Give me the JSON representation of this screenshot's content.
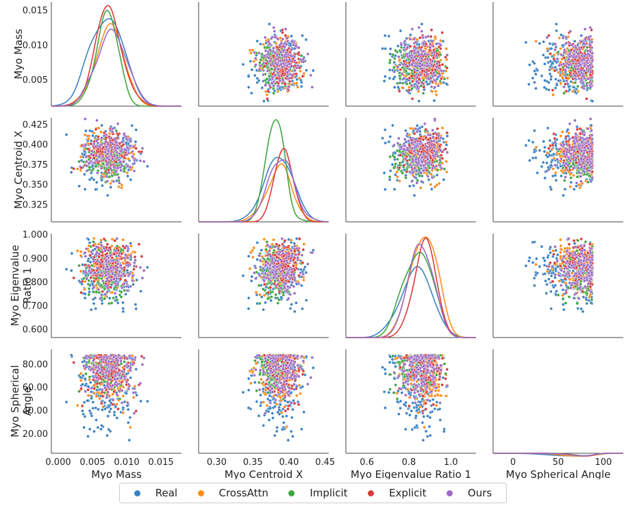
{
  "chart_data": {
    "type": "pairplot",
    "variables": [
      "Myo Mass",
      "Myo Centroid X",
      "Myo Eigenvalue Ratio 1",
      "Myo Spherical Angle"
    ],
    "row_labels": [
      [
        "Myo Mass"
      ],
      [
        "Myo Centroid X"
      ],
      [
        "Myo Eigenvalue",
        "Ratio 1"
      ],
      [
        "Myo Spherical",
        "Angle"
      ]
    ],
    "x_ranges": [
      [
        -0.001,
        0.018
      ],
      [
        0.275,
        0.455
      ],
      [
        0.5,
        1.12
      ],
      [
        -22,
        122
      ]
    ],
    "y_ranges": [
      [
        0.0012,
        0.0162
      ],
      [
        0.3035,
        0.4335
      ],
      [
        0.565,
        1.005
      ],
      [
        3,
        93
      ]
    ],
    "x_ticks": [
      {
        "values": [
          0.0,
          0.005,
          0.01,
          0.015
        ],
        "labels": [
          "0.000",
          "0.005",
          "0.010",
          "0.015"
        ]
      },
      {
        "values": [
          0.3,
          0.35,
          0.4,
          0.45
        ],
        "labels": [
          "0.30",
          "0.35",
          "0.40",
          "0.45"
        ]
      },
      {
        "values": [
          0.6,
          0.8,
          1.0
        ],
        "labels": [
          "0.6",
          "0.8",
          "1.0"
        ]
      },
      {
        "values": [
          0,
          50,
          100
        ],
        "labels": [
          "0",
          "50",
          "100"
        ]
      }
    ],
    "y_ticks": [
      {
        "values": [
          0.005,
          0.01,
          0.015
        ],
        "labels": [
          "0.005",
          "0.010",
          "0.015"
        ]
      },
      {
        "values": [
          0.325,
          0.35,
          0.375,
          0.4,
          0.425
        ],
        "labels": [
          "0.325",
          "0.350",
          "0.375",
          "0.400",
          "0.425"
        ]
      },
      {
        "values": [
          0.6,
          0.7,
          0.8,
          0.9,
          1.0
        ],
        "labels": [
          "0.600",
          "0.700",
          "0.800",
          "0.900",
          "1.000"
        ]
      },
      {
        "values": [
          20,
          40,
          60,
          80
        ],
        "labels": [
          "20.00",
          "40.00",
          "60.00",
          "80.00"
        ]
      }
    ],
    "series": [
      {
        "name": "Real",
        "color": "#3b82c4",
        "points": 230,
        "center": [
          0.0072,
          0.386,
          0.838,
          66
        ],
        "spread": [
          0.0021,
          0.018,
          0.072,
          20
        ]
      },
      {
        "name": "CrossAttn",
        "color": "#ff8c1a",
        "points": 140,
        "center": [
          0.0075,
          0.388,
          0.868,
          72
        ],
        "spread": [
          0.0019,
          0.016,
          0.058,
          17
        ]
      },
      {
        "name": "Implicit",
        "color": "#3fa53f",
        "points": 140,
        "center": [
          0.0072,
          0.382,
          0.852,
          78
        ],
        "spread": [
          0.0015,
          0.011,
          0.06,
          11
        ]
      },
      {
        "name": "Explicit",
        "color": "#d93a3a",
        "points": 140,
        "center": [
          0.0073,
          0.392,
          0.882,
          76
        ],
        "spread": [
          0.0017,
          0.012,
          0.052,
          12
        ]
      },
      {
        "name": "Ours",
        "color": "#9b6bc6",
        "points": 140,
        "center": [
          0.0078,
          0.389,
          0.86,
          74
        ],
        "spread": [
          0.0019,
          0.015,
          0.055,
          13
        ]
      }
    ],
    "kde": [
      {
        "variable": "Myo Mass",
        "peaks": {
          "Real": [
            0.0065,
            0.0138
          ],
          "CrossAttn": [
            0.0065,
            0.0131
          ],
          "Implicit": [
            0.0062,
            0.015
          ],
          "Explicit": [
            0.006,
            0.0157
          ],
          "Ours": [
            0.0068,
            0.0123
          ]
        }
      },
      {
        "variable": "Myo Centroid X",
        "peaks": {
          "Real": [
            0.388,
            0.384
          ],
          "CrossAttn": [
            0.391,
            0.376
          ],
          "Implicit": [
            0.381,
            0.431
          ],
          "Explicit": [
            0.394,
            0.395
          ],
          "Ours": [
            0.388,
            0.381
          ]
        }
      },
      {
        "variable": "Myo Eigenvalue Ratio 1",
        "peaks": {
          "Real": [
            0.82,
            0.865
          ],
          "CrossAttn": [
            0.91,
            0.99
          ],
          "Implicit": [
            0.88,
            0.925
          ],
          "Explicit": [
            0.905,
            0.985
          ],
          "Ours": [
            0.87,
            0.96
          ]
        }
      },
      {
        "variable": "Myo Spherical Angle",
        "peaks": {
          "Real": [
            80,
            0.7
          ],
          "CrossAttn": [
            80,
            0.5
          ],
          "Implicit": [
            80,
            0.89
          ],
          "Explicit": [
            80,
            0.6
          ],
          "Ours": [
            80,
            0.73
          ]
        }
      }
    ],
    "legend_position": "bottom-center"
  },
  "legend": {
    "items": [
      {
        "label": "Real",
        "color": "#3b82c4"
      },
      {
        "label": "CrossAttn",
        "color": "#ff8c1a"
      },
      {
        "label": "Implicit",
        "color": "#3fa53f"
      },
      {
        "label": "Explicit",
        "color": "#d93a3a"
      },
      {
        "label": "Ours",
        "color": "#9b6bc6"
      }
    ]
  }
}
